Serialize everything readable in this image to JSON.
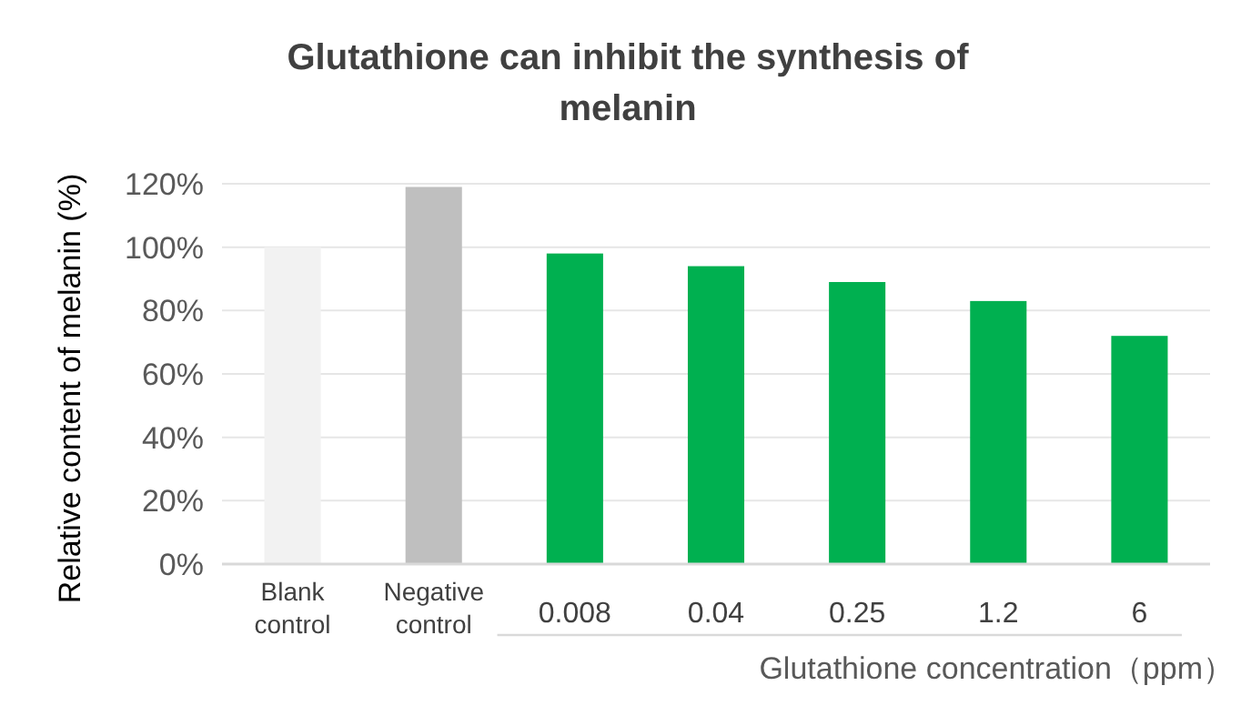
{
  "chart_data": {
    "type": "bar",
    "title": "Glutathione can inhibit the synthesis of melanin",
    "xlabel": "Glutathione concentration（ppm）",
    "ylabel": "Relative content of melanin (%)",
    "categories": [
      "Blank control",
      "Negative control",
      "0.008",
      "0.04",
      "0.25",
      "1.2",
      "6"
    ],
    "values": [
      100,
      119,
      98,
      94,
      89,
      83,
      72
    ],
    "colors": [
      "#f2f2f2",
      "#bfbfbf",
      "#00b050",
      "#00b050",
      "#00b050",
      "#00b050",
      "#00b050"
    ],
    "ylim": [
      0,
      120
    ],
    "yticks": [
      {
        "value": 0,
        "label": "0%"
      },
      {
        "value": 20,
        "label": "20%"
      },
      {
        "value": 40,
        "label": "40%"
      },
      {
        "value": 60,
        "label": "60%"
      },
      {
        "value": 80,
        "label": "80%"
      },
      {
        "value": 100,
        "label": "100%"
      },
      {
        "value": 120,
        "label": "120%"
      }
    ],
    "grid": "y"
  }
}
